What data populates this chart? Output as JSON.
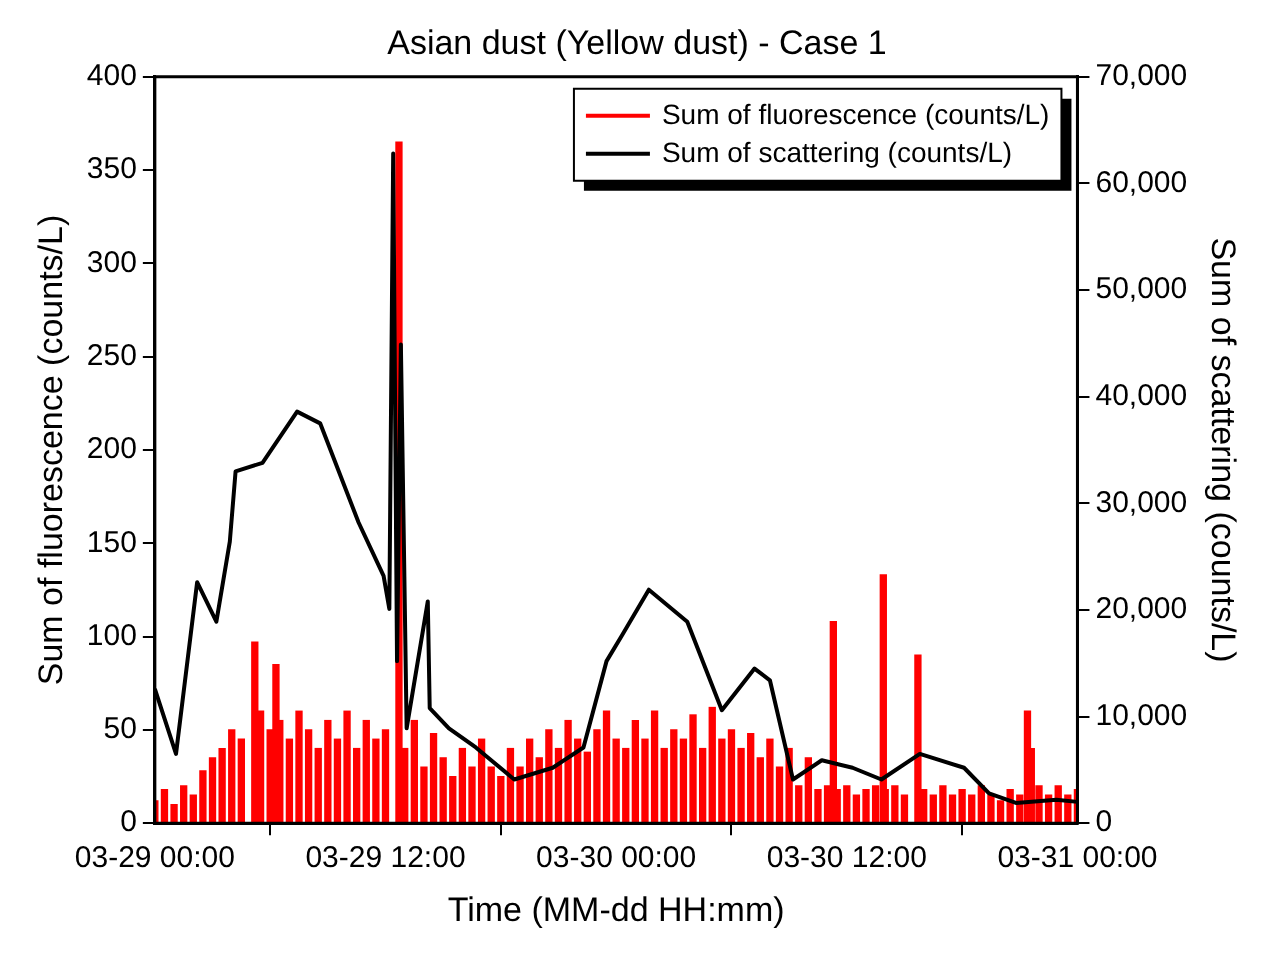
{
  "chart_data": {
    "type": "line",
    "title": "Asian dust (Yellow dust) - Case 1",
    "xlabel": "Time (MM-dd HH:mm)",
    "ylabel": "Sum of fluorescence (counts/L)",
    "y2label": "Sum of scattering (counts/L)",
    "xlim": [
      "--03-29T00:00",
      "--03-31T00:00"
    ],
    "xticks": [
      {
        "value": "--03-29T00:00",
        "label": "03-29 00:00"
      },
      {
        "value": "--03-29T12:00",
        "label": "03-29 12:00"
      },
      {
        "value": "--03-30T00:00",
        "label": "03-30 00:00"
      },
      {
        "value": "--03-30T12:00",
        "label": "03-30 12:00"
      },
      {
        "value": "--03-31T00:00",
        "label": "03-31 00:00"
      }
    ],
    "ylim": [
      0,
      400
    ],
    "yticks": [
      0,
      50,
      100,
      150,
      200,
      250,
      300,
      350,
      400
    ],
    "y2lim": [
      0,
      70000
    ],
    "y2ticks": [
      0,
      {
        "value": 10000,
        "label": "10,000"
      },
      {
        "value": 20000,
        "label": "20,000"
      },
      {
        "value": 30000,
        "label": "30,000"
      },
      {
        "value": 40000,
        "label": "40,000"
      },
      {
        "value": 50000,
        "label": "50,000"
      },
      {
        "value": 60000,
        "label": "60,000"
      },
      {
        "value": 70000,
        "label": "70,000"
      }
    ],
    "grid": false,
    "legend": "top right",
    "marker": "none",
    "line_style": "solid",
    "series": [
      {
        "name": "Sum of fluorescence (counts/L)",
        "type": "bar",
        "color": "#ff0000",
        "x": [
          "--03-29T00:00",
          "--03-29T00:30",
          "--03-29T01:00",
          "--03-29T01:30",
          "--03-29T02:00",
          "--03-29T02:30",
          "--03-29T03:00",
          "--03-29T03:30",
          "--03-29T04:00",
          "--03-29T04:30",
          "--03-29T05:12",
          "--03-29T05:30",
          "--03-29T06:00",
          "--03-29T06:18",
          "--03-29T06:30",
          "--03-29T07:00",
          "--03-29T07:30",
          "--03-29T08:00",
          "--03-29T08:30",
          "--03-29T09:00",
          "--03-29T09:30",
          "--03-29T10:00",
          "--03-29T10:30",
          "--03-29T11:00",
          "--03-29T11:30",
          "--03-29T12:00",
          "--03-29T12:42",
          "--03-29T13:00",
          "--03-29T13:30",
          "--03-29T14:00",
          "--03-29T14:30",
          "--03-29T15:00",
          "--03-29T15:30",
          "--03-29T16:00",
          "--03-29T16:30",
          "--03-29T17:00",
          "--03-29T17:30",
          "--03-29T18:00",
          "--03-29T18:30",
          "--03-29T19:00",
          "--03-29T19:30",
          "--03-29T20:00",
          "--03-29T20:30",
          "--03-29T21:00",
          "--03-29T21:30",
          "--03-29T22:00",
          "--03-29T22:30",
          "--03-29T23:00",
          "--03-29T23:30",
          "--03-30T00:00",
          "--03-30T00:30",
          "--03-30T01:00",
          "--03-30T01:30",
          "--03-30T02:00",
          "--03-30T02:30",
          "--03-30T03:00",
          "--03-30T03:30",
          "--03-30T04:00",
          "--03-30T04:30",
          "--03-30T05:00",
          "--03-30T05:30",
          "--03-30T06:00",
          "--03-30T06:30",
          "--03-30T07:00",
          "--03-30T07:30",
          "--03-30T08:00",
          "--03-30T08:30",
          "--03-30T09:00",
          "--03-30T09:30",
          "--03-30T10:00",
          "--03-30T10:30",
          "--03-30T11:00",
          "--03-30T11:18",
          "--03-30T11:30",
          "--03-30T12:00",
          "--03-30T12:30",
          "--03-30T13:00",
          "--03-30T13:30",
          "--03-30T13:54",
          "--03-30T14:00",
          "--03-30T14:30",
          "--03-30T15:00",
          "--03-30T15:42",
          "--03-30T16:00",
          "--03-30T16:30",
          "--03-30T17:00",
          "--03-30T17:30",
          "--03-30T18:00",
          "--03-30T18:30",
          "--03-30T19:00",
          "--03-30T19:30",
          "--03-30T20:00",
          "--03-30T20:30",
          "--03-30T21:00",
          "--03-30T21:24",
          "--03-30T21:36",
          "--03-30T22:00",
          "--03-30T22:30",
          "--03-30T23:00",
          "--03-30T23:30",
          "--03-31T00:00"
        ],
        "values": [
          12,
          18,
          10,
          20,
          15,
          28,
          35,
          40,
          50,
          45,
          97,
          60,
          50,
          85,
          55,
          45,
          60,
          50,
          40,
          55,
          45,
          60,
          40,
          55,
          45,
          50,
          365,
          40,
          55,
          30,
          48,
          35,
          25,
          40,
          30,
          45,
          30,
          25,
          40,
          30,
          45,
          35,
          50,
          40,
          55,
          45,
          38,
          50,
          60,
          45,
          40,
          55,
          45,
          60,
          40,
          50,
          45,
          58,
          40,
          62,
          45,
          50,
          40,
          48,
          35,
          45,
          30,
          40,
          20,
          35,
          18,
          20,
          108,
          18,
          20,
          15,
          18,
          20,
          133,
          18,
          20,
          15,
          90,
          18,
          15,
          20,
          15,
          18,
          15,
          20,
          15,
          12,
          18,
          15,
          60,
          40,
          20,
          15,
          20,
          15,
          18
        ]
      },
      {
        "name": "Sum of scattering (counts/L)",
        "axis": "y2",
        "color": "#000000",
        "x": [
          "--03-29T00:00",
          "--03-29T01:06",
          "--03-29T02:12",
          "--03-29T03:12",
          "--03-29T03:54",
          "--03-29T04:12",
          "--03-29T05:36",
          "--03-29T07:24",
          "--03-29T08:36",
          "--03-29T10:36",
          "--03-29T11:54",
          "--03-29T12:12",
          "--03-29T12:24",
          "--03-29T12:36",
          "--03-29T12:48",
          "--03-29T13:06",
          "--03-29T14:12",
          "--03-29T14:18",
          "--03-29T15:18",
          "--03-29T16:42",
          "--03-29T18:42",
          "--03-29T20:42",
          "--03-29T22:18",
          "--03-29T23:30",
          "--03-30T00:18",
          "--03-30T01:42",
          "--03-30T03:42",
          "--03-30T05:30",
          "--03-30T07:12",
          "--03-30T08:00",
          "--03-30T09:12",
          "--03-30T10:42",
          "--03-30T12:18",
          "--03-30T13:48",
          "--03-30T15:48",
          "--03-30T18:06",
          "--03-30T19:24",
          "--03-30T20:48",
          "--03-30T22:54",
          "--03-31T00:00"
        ],
        "values": [
          12600,
          6500,
          22600,
          18900,
          26400,
          33000,
          33800,
          38600,
          37500,
          28200,
          23200,
          20100,
          62800,
          15200,
          44900,
          8900,
          20800,
          10800,
          8900,
          7100,
          4100,
          5200,
          7100,
          15200,
          17600,
          21900,
          18900,
          10600,
          14500,
          13400,
          4100,
          5900,
          5200,
          4100,
          6500,
          5200,
          2800,
          1900,
          2200,
          2000
        ]
      }
    ]
  }
}
